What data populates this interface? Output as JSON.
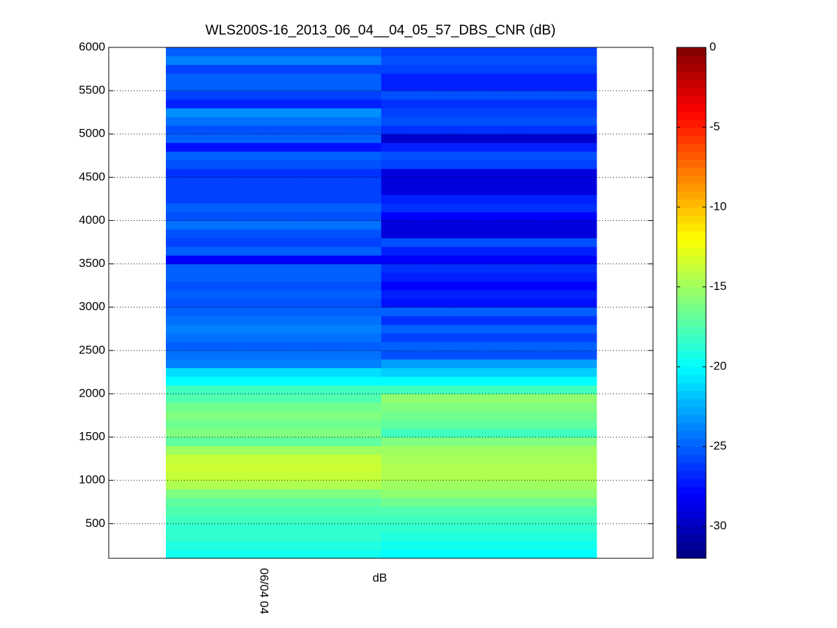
{
  "chart_data": {
    "type": "heatmap",
    "title": "WLS200S-16_2013_06_04__04_05_57_DBS_CNR (dB)",
    "xlabel": "dB",
    "y_edges": [
      100,
      200,
      300,
      400,
      500,
      600,
      700,
      800,
      900,
      1000,
      1100,
      1200,
      1300,
      1400,
      1500,
      1600,
      1700,
      1800,
      1900,
      2000,
      2100,
      2200,
      2300,
      2400,
      2500,
      2600,
      2700,
      2800,
      2900,
      3000,
      3100,
      3200,
      3300,
      3400,
      3500,
      3600,
      3700,
      3800,
      3900,
      4000,
      4100,
      4200,
      4300,
      4400,
      4500,
      4600,
      4700,
      4800,
      4900,
      5000,
      5100,
      5200,
      5300,
      5400,
      5500,
      5600,
      5700,
      5800,
      5900,
      6000
    ],
    "columns": [
      {
        "label": "06/04 04",
        "values": [
          -19.5,
          -19,
          -18.5,
          -18.5,
          -18,
          -17.5,
          -17,
          -16,
          -14.5,
          -13.8,
          -13.6,
          -13.8,
          -15,
          -17,
          -16,
          -16.5,
          -16,
          -16.5,
          -17.5,
          -18,
          -20,
          -21,
          -24,
          -24.5,
          -25,
          -24.5,
          -24,
          -24.5,
          -25,
          -25.5,
          -25,
          -25.5,
          -25,
          -25,
          -28,
          -25,
          -26,
          -25.5,
          -24.5,
          -25.5,
          -25,
          -26,
          -26,
          -26,
          -26.5,
          -25.5,
          -25,
          -27.5,
          -25,
          -25.5,
          -24.5,
          -23.5,
          -27,
          -26,
          -25,
          -25,
          -26,
          -24,
          -25
        ]
      },
      {
        "label": null,
        "values": [
          -20,
          -19.5,
          -19,
          -18.5,
          -18,
          -17.5,
          -16.5,
          -15.5,
          -15,
          -14.5,
          -14.5,
          -14.8,
          -15,
          -16,
          -18,
          -17,
          -16.5,
          -16,
          -15.5,
          -18,
          -20,
          -21.5,
          -23,
          -25.5,
          -25,
          -26,
          -25,
          -26.5,
          -25,
          -27.5,
          -27,
          -28,
          -27,
          -26.5,
          -28,
          -27,
          -25.5,
          -29,
          -29,
          -28,
          -26.5,
          -27,
          -29,
          -29,
          -29,
          -26,
          -25.5,
          -27,
          -29.5,
          -26.5,
          -25.5,
          -26,
          -26.5,
          -25.5,
          -27,
          -27,
          -26,
          -25.5,
          -26
        ]
      }
    ],
    "ylim": [
      100,
      6000
    ],
    "yticks": [
      500,
      1000,
      1500,
      2000,
      2500,
      3000,
      3500,
      4000,
      4500,
      5000,
      5500,
      6000
    ],
    "grid": true,
    "colormap": "jet",
    "clim": [
      -32,
      0
    ],
    "cticks": [
      0,
      -5,
      -10,
      -15,
      -20,
      -25,
      -30
    ]
  }
}
